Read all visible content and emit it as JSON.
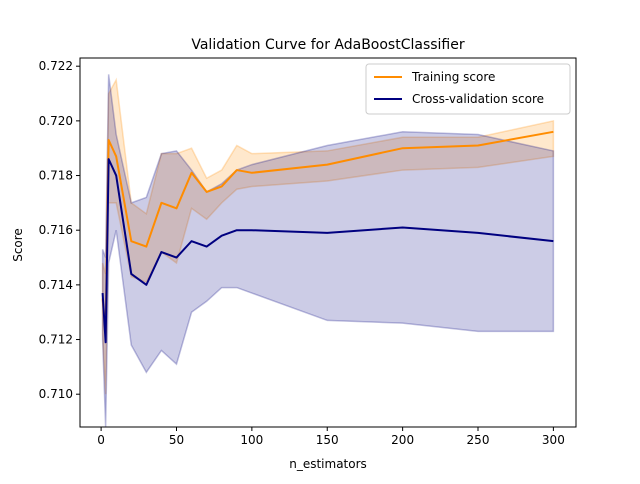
{
  "chart_data": {
    "type": "line",
    "title": "Validation Curve for AdaBoostClassifier",
    "xlabel": "n_estimators",
    "ylabel": "Score",
    "xlim": [
      -14,
      315
    ],
    "ylim": [
      0.7088,
      0.7223
    ],
    "xticks": [
      0,
      50,
      100,
      150,
      200,
      250,
      300
    ],
    "yticks": [
      0.71,
      0.712,
      0.714,
      0.716,
      0.718,
      0.72,
      0.722
    ],
    "grid": false,
    "legend_position": "top-right",
    "x": [
      1,
      3,
      5,
      10,
      20,
      30,
      40,
      50,
      60,
      70,
      80,
      90,
      100,
      150,
      200,
      250,
      300
    ],
    "series": [
      {
        "name": "Training score",
        "color": "#ff8c00",
        "values": [
          0.7135,
          0.7122,
          0.7193,
          0.7187,
          0.7156,
          0.7154,
          0.717,
          0.7168,
          0.7181,
          0.7174,
          0.7176,
          0.7182,
          0.7181,
          0.7184,
          0.719,
          0.7191,
          0.7196
        ],
        "lower": [
          0.7122,
          0.71,
          0.717,
          0.717,
          0.7143,
          0.7141,
          0.7152,
          0.7148,
          0.7168,
          0.7164,
          0.717,
          0.7175,
          0.7176,
          0.7178,
          0.7182,
          0.7183,
          0.7187
        ],
        "upper": [
          0.7148,
          0.7144,
          0.721,
          0.7215,
          0.717,
          0.7166,
          0.7188,
          0.7188,
          0.719,
          0.7179,
          0.7182,
          0.7191,
          0.7188,
          0.7189,
          0.7194,
          0.7194,
          0.72
        ]
      },
      {
        "name": "Cross-validation score",
        "color": "#000080",
        "values": [
          0.7137,
          0.7119,
          0.7186,
          0.718,
          0.7144,
          0.714,
          0.7152,
          0.715,
          0.7156,
          0.7154,
          0.7158,
          0.716,
          0.716,
          0.7159,
          0.7161,
          0.7159,
          0.7156
        ],
        "lower": [
          0.712,
          0.7088,
          0.7148,
          0.716,
          0.7118,
          0.7108,
          0.7116,
          0.7111,
          0.713,
          0.7134,
          0.7139,
          0.7139,
          0.7137,
          0.7127,
          0.7126,
          0.7123,
          0.7123
        ],
        "upper": [
          0.7153,
          0.715,
          0.7217,
          0.7195,
          0.717,
          0.7172,
          0.7188,
          0.7189,
          0.7182,
          0.7174,
          0.7177,
          0.7182,
          0.7184,
          0.7191,
          0.7196,
          0.7195,
          0.7189
        ]
      }
    ]
  }
}
